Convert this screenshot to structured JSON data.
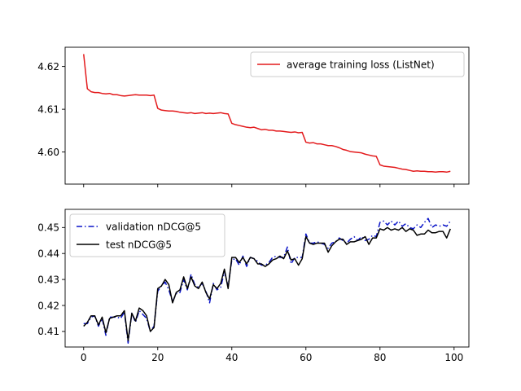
{
  "chart_data": [
    {
      "type": "line",
      "title": "",
      "xlabel": "",
      "ylabel": "",
      "xlim": [
        -5,
        104
      ],
      "ylim": [
        4.5925,
        4.6245
      ],
      "xticks": [
        0,
        20,
        40,
        60,
        80,
        100
      ],
      "yticks": [
        4.6,
        4.61,
        4.62
      ],
      "ytick_labels": [
        "4.60",
        "4.61",
        "4.62"
      ],
      "grid": false,
      "legend_position": "top-right",
      "series": [
        {
          "name": "average training loss (ListNet)",
          "color": "#e31a1c",
          "style": "solid",
          "x": [
            0,
            1,
            2,
            3,
            4,
            5,
            6,
            7,
            8,
            9,
            10,
            11,
            12,
            13,
            14,
            15,
            16,
            17,
            18,
            19,
            20,
            21,
            22,
            23,
            24,
            25,
            26,
            27,
            28,
            29,
            30,
            31,
            32,
            33,
            34,
            35,
            36,
            37,
            38,
            39,
            40,
            41,
            42,
            43,
            44,
            45,
            46,
            47,
            48,
            49,
            50,
            51,
            52,
            53,
            54,
            55,
            56,
            57,
            58,
            59,
            60,
            61,
            62,
            63,
            64,
            65,
            66,
            67,
            68,
            69,
            70,
            71,
            72,
            73,
            74,
            75,
            76,
            77,
            78,
            79,
            80,
            81,
            82,
            83,
            84,
            85,
            86,
            87,
            88,
            89,
            90,
            91,
            92,
            93,
            94,
            95,
            96,
            97,
            98,
            99
          ],
          "values": [
            4.6229,
            4.6148,
            4.6141,
            4.6139,
            4.6139,
            4.6137,
            4.6136,
            4.6137,
            4.6134,
            4.6134,
            4.6132,
            4.6131,
            4.6132,
            4.6133,
            4.6134,
            4.6133,
            4.6133,
            4.6133,
            4.6132,
            4.6133,
            4.6102,
            4.6098,
            4.6097,
            4.6096,
            4.6096,
            4.6095,
            4.6093,
            4.6092,
            4.6091,
            4.6092,
            4.609,
            4.6091,
            4.6092,
            4.609,
            4.6091,
            4.609,
            4.6091,
            4.6092,
            4.609,
            4.6089,
            4.6067,
            4.6064,
            4.6062,
            4.606,
            4.6058,
            4.6057,
            4.6058,
            4.6055,
            4.6052,
            4.6053,
            4.6051,
            4.6051,
            4.6049,
            4.6049,
            4.6048,
            4.6047,
            4.6046,
            4.6047,
            4.6045,
            4.6046,
            4.6023,
            4.6021,
            4.6022,
            4.6019,
            4.6019,
            4.6017,
            4.6015,
            4.6015,
            4.6013,
            4.601,
            4.6006,
            4.6004,
            4.6001,
            4.6,
            4.5999,
            4.5998,
            4.5995,
            4.5993,
            4.5991,
            4.599,
            4.597,
            4.5967,
            4.5966,
            4.5965,
            4.5964,
            4.5962,
            4.596,
            4.5959,
            4.5957,
            4.5955,
            4.5956,
            4.5955,
            4.5955,
            4.5954,
            4.5954,
            4.5953,
            4.5954,
            4.5954,
            4.5953,
            4.5955
          ]
        }
      ]
    },
    {
      "type": "line",
      "title": "",
      "xlabel": "",
      "ylabel": "",
      "xlim": [
        -5,
        104
      ],
      "ylim": [
        4.04,
        4.57
      ],
      "ylim_note_units": "axis units",
      "xticks": [
        0,
        20,
        40,
        60,
        80,
        100
      ],
      "xtick_labels": [
        "0",
        "20",
        "40",
        "60",
        "80",
        "100"
      ],
      "yticks": [
        0.41,
        0.42,
        0.43,
        0.44,
        0.45
      ],
      "ytick_labels": [
        "0.41",
        "0.42",
        "0.43",
        "0.44",
        "0.45"
      ],
      "grid": false,
      "legend_position": "top-left",
      "series": [
        {
          "name": "validation nDCG@5",
          "color": "#0a14c8",
          "style": "dashdot",
          "x": [
            0,
            1,
            2,
            3,
            4,
            5,
            6,
            7,
            8,
            9,
            10,
            11,
            12,
            13,
            14,
            15,
            16,
            17,
            18,
            19,
            20,
            21,
            22,
            23,
            24,
            25,
            26,
            27,
            28,
            29,
            30,
            31,
            32,
            33,
            34,
            35,
            36,
            37,
            38,
            39,
            40,
            41,
            42,
            43,
            44,
            45,
            46,
            47,
            48,
            49,
            50,
            51,
            52,
            53,
            54,
            55,
            56,
            57,
            58,
            59,
            60,
            61,
            62,
            63,
            64,
            65,
            66,
            67,
            68,
            69,
            70,
            71,
            72,
            73,
            74,
            75,
            76,
            77,
            78,
            79,
            80,
            81,
            82,
            83,
            84,
            85,
            86,
            87,
            88,
            89,
            90,
            91,
            92,
            93,
            94,
            95,
            96,
            97,
            98,
            99
          ],
          "values": [
            0.413,
            0.413,
            0.4155,
            0.416,
            0.412,
            0.415,
            0.4085,
            0.4155,
            0.4155,
            0.4155,
            0.415,
            0.4175,
            0.4055,
            0.417,
            0.4135,
            0.418,
            0.4165,
            0.415,
            0.41,
            0.412,
            0.4255,
            0.4275,
            0.429,
            0.426,
            0.4215,
            0.4245,
            0.425,
            0.43,
            0.426,
            0.432,
            0.428,
            0.427,
            0.4285,
            0.4255,
            0.421,
            0.4285,
            0.426,
            0.427,
            0.433,
            0.4275,
            0.4375,
            0.438,
            0.4355,
            0.439,
            0.435,
            0.4385,
            0.438,
            0.437,
            0.4355,
            0.4355,
            0.4365,
            0.4385,
            0.439,
            0.4385,
            0.4385,
            0.4425,
            0.436,
            0.4385,
            0.4385,
            0.4385,
            0.4475,
            0.444,
            0.444,
            0.4445,
            0.444,
            0.4435,
            0.442,
            0.444,
            0.4445,
            0.446,
            0.445,
            0.444,
            0.4455,
            0.4465,
            0.445,
            0.4465,
            0.445,
            0.4455,
            0.447,
            0.4465,
            0.452,
            0.4525,
            0.451,
            0.4525,
            0.451,
            0.4525,
            0.4505,
            0.4515,
            0.45,
            0.4495,
            0.451,
            0.45,
            0.452,
            0.4535,
            0.45,
            0.451,
            0.4505,
            0.451,
            0.4505,
            0.4525
          ]
        },
        {
          "name": "test nDCG@5",
          "color": "#000000",
          "style": "solid",
          "x": [
            0,
            1,
            2,
            3,
            4,
            5,
            6,
            7,
            8,
            9,
            10,
            11,
            12,
            13,
            14,
            15,
            16,
            17,
            18,
            19,
            20,
            21,
            22,
            23,
            24,
            25,
            26,
            27,
            28,
            29,
            30,
            31,
            32,
            33,
            34,
            35,
            36,
            37,
            38,
            39,
            40,
            41,
            42,
            43,
            44,
            45,
            46,
            47,
            48,
            49,
            50,
            51,
            52,
            53,
            54,
            55,
            56,
            57,
            58,
            59,
            60,
            61,
            62,
            63,
            64,
            65,
            66,
            67,
            68,
            69,
            70,
            71,
            72,
            73,
            74,
            75,
            76,
            77,
            78,
            79,
            80,
            81,
            82,
            83,
            84,
            85,
            86,
            87,
            88,
            89,
            90,
            91,
            92,
            93,
            94,
            95,
            96,
            97,
            98,
            99
          ],
          "values": [
            0.412,
            0.4135,
            0.416,
            0.416,
            0.4125,
            0.4155,
            0.4095,
            0.415,
            0.4155,
            0.416,
            0.416,
            0.418,
            0.4065,
            0.417,
            0.414,
            0.419,
            0.418,
            0.416,
            0.41,
            0.4115,
            0.4265,
            0.4275,
            0.43,
            0.428,
            0.421,
            0.425,
            0.426,
            0.431,
            0.4265,
            0.431,
            0.4275,
            0.4265,
            0.429,
            0.425,
            0.4225,
            0.428,
            0.4265,
            0.4285,
            0.434,
            0.4265,
            0.4385,
            0.4385,
            0.4365,
            0.4385,
            0.436,
            0.4385,
            0.438,
            0.436,
            0.436,
            0.435,
            0.436,
            0.4375,
            0.438,
            0.439,
            0.438,
            0.441,
            0.4375,
            0.438,
            0.4355,
            0.438,
            0.4465,
            0.444,
            0.4435,
            0.444,
            0.444,
            0.444,
            0.4405,
            0.443,
            0.4445,
            0.4455,
            0.4455,
            0.4435,
            0.4445,
            0.4445,
            0.445,
            0.4455,
            0.4465,
            0.4435,
            0.446,
            0.446,
            0.4495,
            0.449,
            0.45,
            0.449,
            0.4495,
            0.449,
            0.45,
            0.4485,
            0.4495,
            0.449,
            0.447,
            0.4475,
            0.4475,
            0.449,
            0.448,
            0.448,
            0.4485,
            0.4485,
            0.446,
            0.4495
          ]
        }
      ]
    }
  ]
}
